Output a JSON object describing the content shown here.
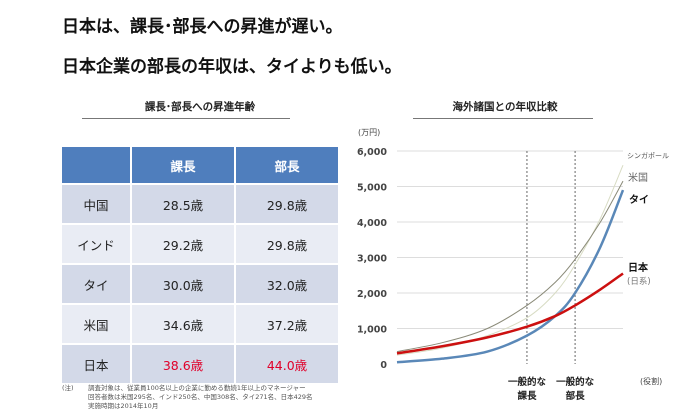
{
  "headline1": "日本は、課長･部長への昇進が遅い。",
  "headline2": "日本企業の部長の年収は、タイよりも低い。",
  "table": {
    "title": "課長･部長への昇進年齢",
    "headers": [
      "",
      "課長",
      "部長"
    ],
    "rows": [
      [
        "中国",
        "28.5歳",
        "29.8歳"
      ],
      [
        "インド",
        "29.2歳",
        "29.8歳"
      ],
      [
        "タイ",
        "30.0歳",
        "32.0歳"
      ],
      [
        "米国",
        "34.6歳",
        "37.2歳"
      ],
      [
        "日本",
        "38.6歳",
        "44.0歳"
      ]
    ],
    "highlight_color": "#e0002a"
  },
  "note": {
    "label": "(注)",
    "lines": [
      "調査対象は、従業員100名以上の企業に勤める勤続1年以上のマネージャー",
      "回答者数は米国295名、インド250名、中国308名、タイ271名、日本429名",
      "実施時期は2014年10月"
    ]
  },
  "chart_data": {
    "type": "line",
    "title": "海外諸国との年収比較",
    "ylabel": "(万円)",
    "xlabel": "(役割)",
    "ylim": [
      0,
      6000
    ],
    "yticks": [
      "0",
      "1,000",
      "2,000",
      "3,000",
      "4,000",
      "5,000",
      "6,000"
    ],
    "grid": true,
    "x": [
      0,
      0.2,
      0.4,
      0.575,
      0.7,
      0.788,
      0.9,
      1
    ],
    "markers": [
      {
        "x": 0.575,
        "label1": "一般的な",
        "label2": "課長"
      },
      {
        "x": 0.788,
        "label1": "一般的な",
        "label2": "部長"
      }
    ],
    "series": [
      {
        "name": "シンガポール",
        "color": "#d8dcc4",
        "values": [
          250,
          450,
          800,
          1300,
          2000,
          2800,
          4100,
          5600
        ]
      },
      {
        "name": "米国",
        "color": "#8a8a78",
        "values": [
          350,
          600,
          1000,
          1650,
          2300,
          2950,
          4000,
          5150
        ]
      },
      {
        "name": "タイ",
        "color": "#5a88b8",
        "values": [
          50,
          150,
          350,
          800,
          1350,
          2000,
          3300,
          4900
        ]
      },
      {
        "name": "日本",
        "sublabel": "(日系)",
        "color": "#cc1010",
        "values": [
          300,
          500,
          750,
          1050,
          1350,
          1650,
          2100,
          2550
        ]
      }
    ]
  }
}
